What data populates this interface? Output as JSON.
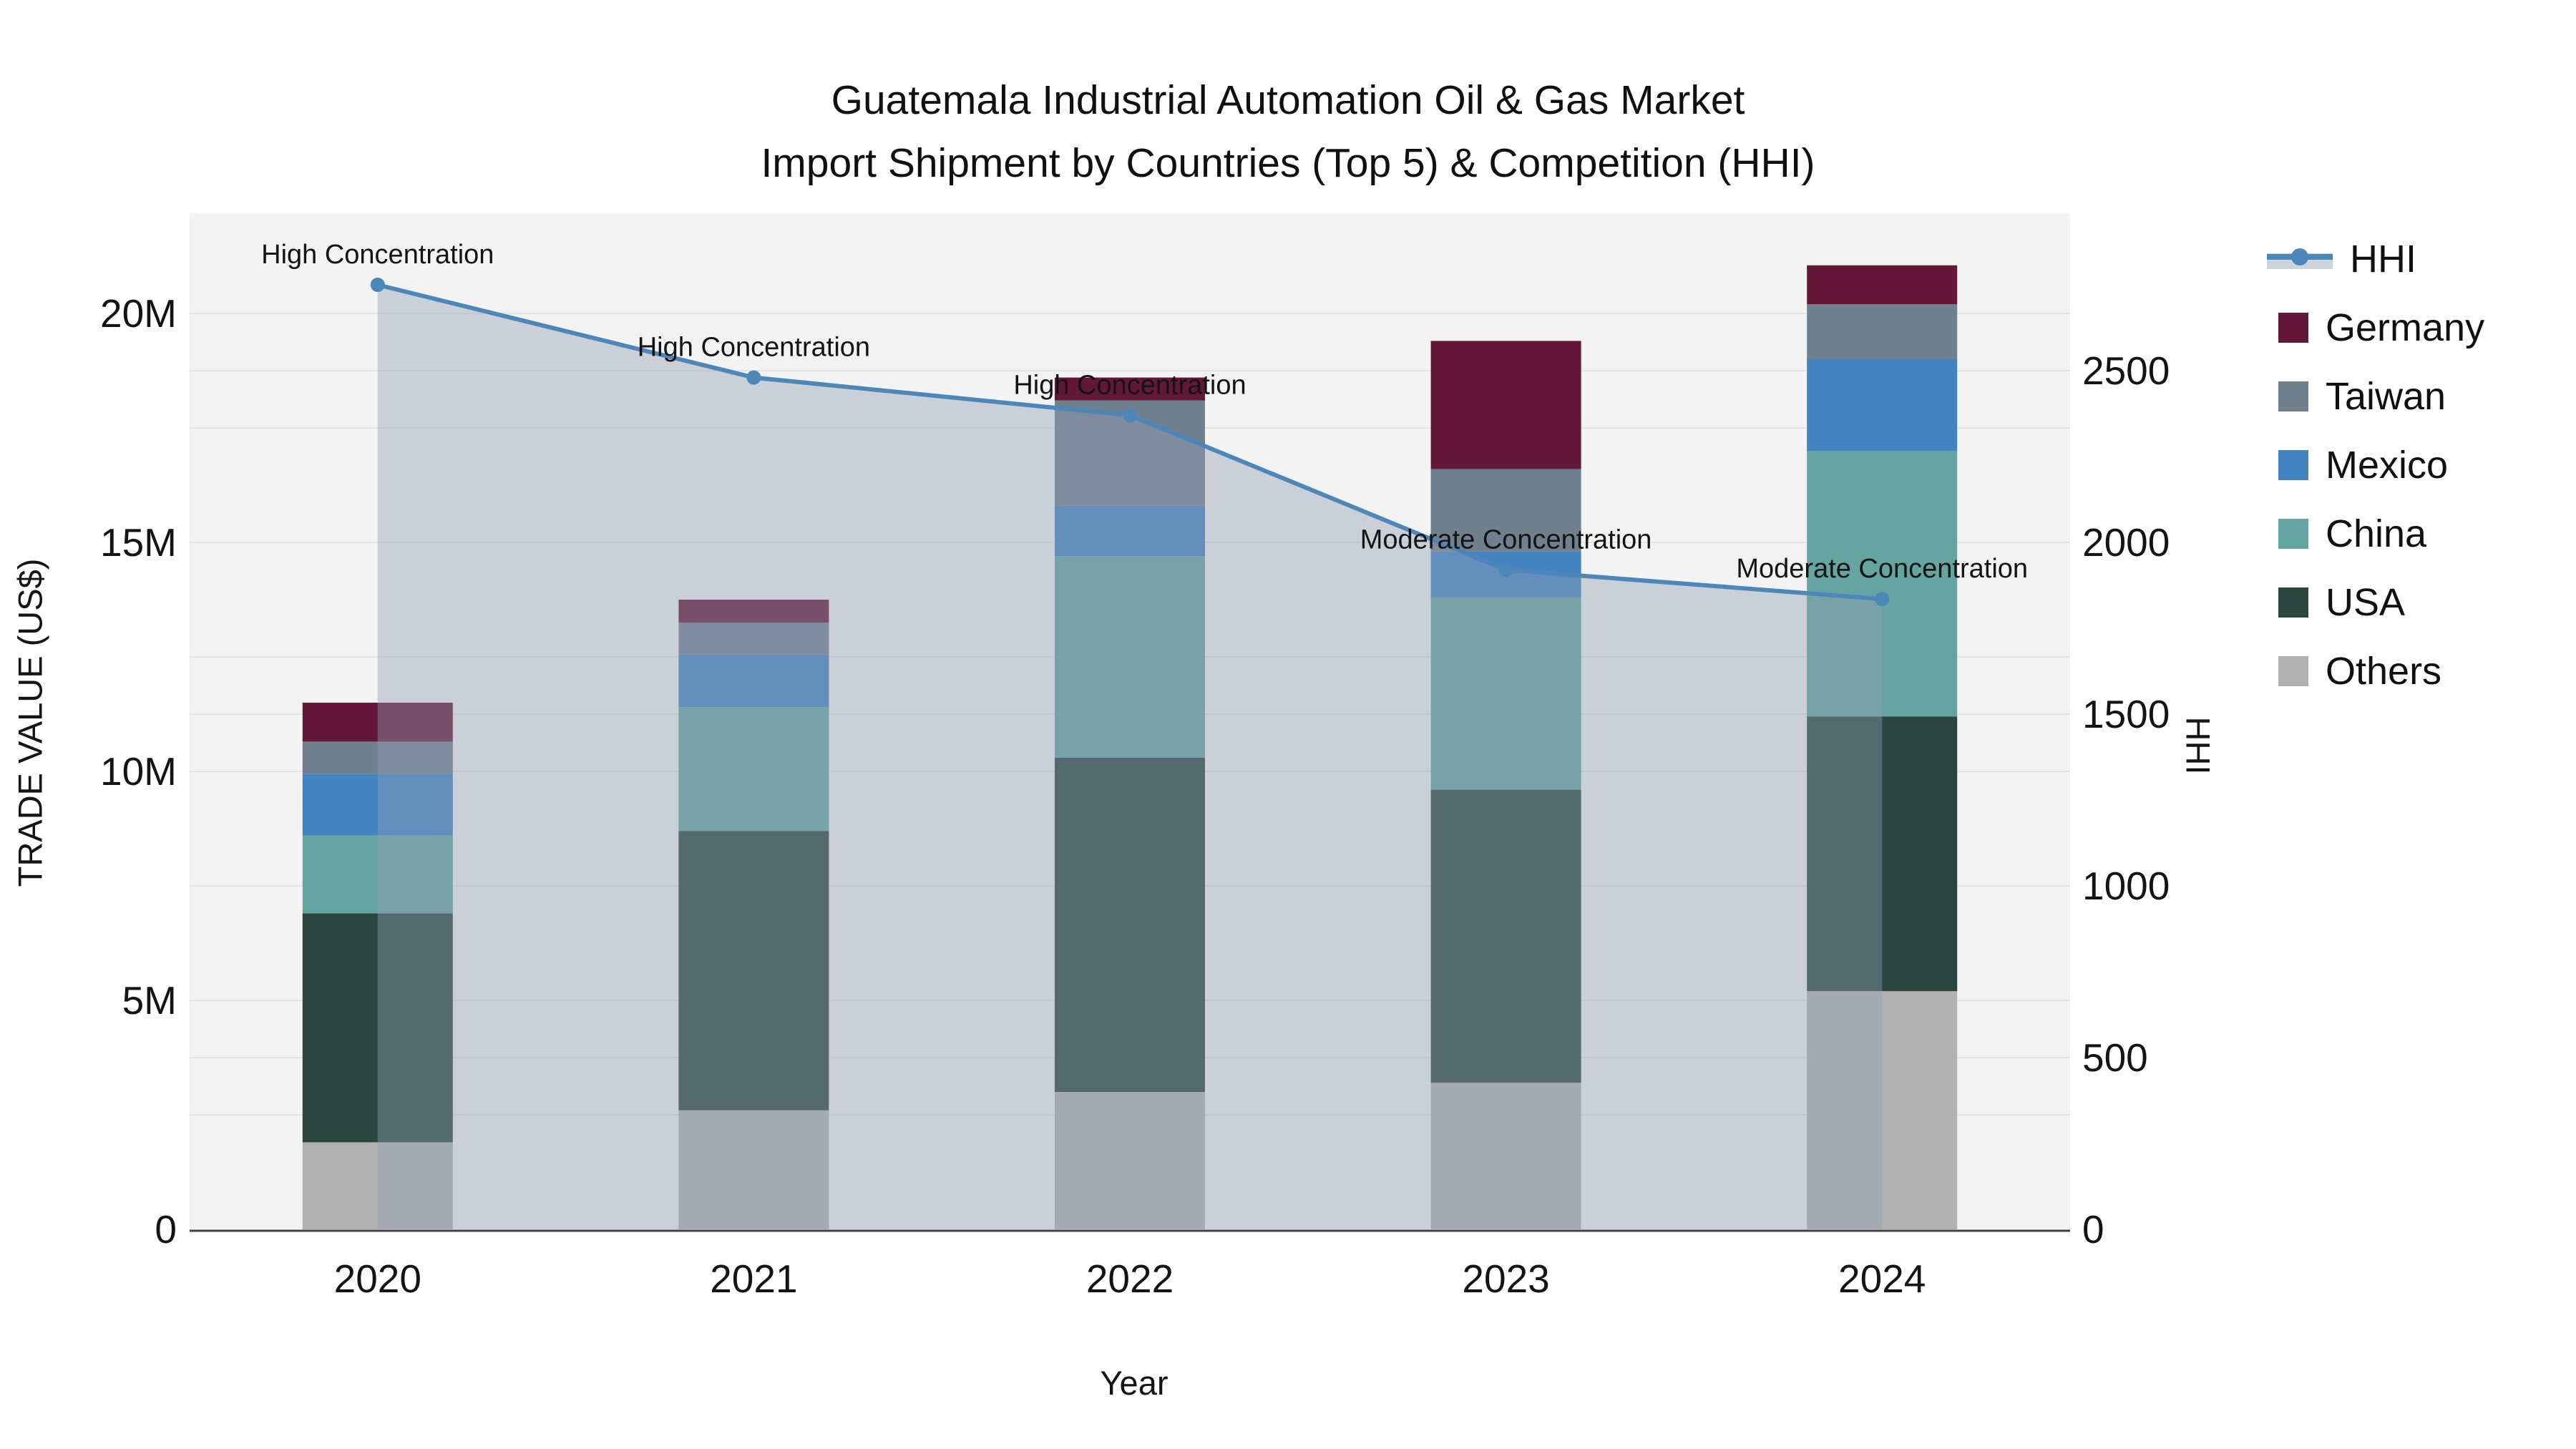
{
  "title": {
    "line1": "Guatemala Industrial Automation Oil & Gas Market",
    "line2": "Import Shipment by Countries (Top 5) & Competition (HHI)"
  },
  "axes": {
    "x": {
      "title": "Year",
      "tick_labels": [
        "2020",
        "2021",
        "2022",
        "2023",
        "2024"
      ]
    },
    "y_left": {
      "title": "TRADE VALUE (US$)",
      "tick_labels": [
        "0",
        "5M",
        "10M",
        "15M",
        "20M"
      ],
      "tick_values_millions": [
        0,
        5,
        10,
        15,
        20
      ],
      "grid_values_millions": [
        2.5,
        5,
        7.5,
        10,
        12.5,
        15,
        17.5,
        20
      ]
    },
    "y_right": {
      "title": "HHI",
      "tick_labels": [
        "0",
        "500",
        "1000",
        "1500",
        "2000",
        "2500"
      ],
      "tick_values": [
        0,
        500,
        1000,
        1500,
        2000,
        2500
      ]
    }
  },
  "legend": {
    "items": [
      {
        "label": "HHI",
        "swatch": "line",
        "color": "#4d87b9"
      },
      {
        "label": "Germany",
        "swatch": "square",
        "color": "#641838"
      },
      {
        "label": "Taiwan",
        "swatch": "square",
        "color": "#71808f"
      },
      {
        "label": "Mexico",
        "swatch": "square",
        "color": "#4483c1"
      },
      {
        "label": "China",
        "swatch": "square",
        "color": "#64a5a1"
      },
      {
        "label": "USA",
        "swatch": "square",
        "color": "#2a463f"
      },
      {
        "label": "Others",
        "swatch": "square",
        "color": "#b2b1b1"
      }
    ]
  },
  "chart_data": {
    "type": "bar+line",
    "title": "Guatemala Industrial Automation Oil & Gas Market — Import Shipment by Countries (Top 5) & Competition (HHI)",
    "xlabel": "Year",
    "ylabel_left": "TRADE VALUE (US$)",
    "ylabel_right": "HHI",
    "categories": [
      "2020",
      "2021",
      "2022",
      "2023",
      "2024"
    ],
    "stacked_bar_series_bottom_to_top": [
      {
        "name": "Others",
        "color": "#b2b1b1",
        "values_millions": [
          1.9,
          2.6,
          3.0,
          3.2,
          5.2
        ]
      },
      {
        "name": "USA",
        "color": "#2a463f",
        "values_millions": [
          5.0,
          6.1,
          7.3,
          6.4,
          6.0
        ]
      },
      {
        "name": "China",
        "color": "#64a5a1",
        "values_millions": [
          1.7,
          2.7,
          4.4,
          4.2,
          5.8
        ]
      },
      {
        "name": "Mexico",
        "color": "#4483c1",
        "values_millions": [
          1.35,
          1.15,
          1.1,
          1.0,
          2.0
        ]
      },
      {
        "name": "Taiwan",
        "color": "#71808f",
        "values_millions": [
          0.7,
          0.7,
          2.3,
          1.8,
          1.2
        ]
      },
      {
        "name": "Germany",
        "color": "#641838",
        "values_millions": [
          0.85,
          0.5,
          0.5,
          2.8,
          0.85
        ]
      }
    ],
    "bar_totals_millions": [
      11.5,
      13.75,
      18.6,
      19.4,
      21.05
    ],
    "line_series": {
      "name": "HHI",
      "axis": "right",
      "color": "#4d87b9",
      "fill_color": "rgba(146,158,178,0.42)",
      "values": [
        2750,
        2480,
        2370,
        1920,
        1835
      ]
    },
    "annotations": [
      {
        "category": "2020",
        "text": "High Concentration"
      },
      {
        "category": "2021",
        "text": "High Concentration"
      },
      {
        "category": "2022",
        "text": "High Concentration"
      },
      {
        "category": "2023",
        "text": "Moderate Concentration"
      },
      {
        "category": "2024",
        "text": "Moderate Concentration"
      }
    ],
    "ylim_left_millions": [
      0,
      22.2
    ],
    "ylim_right": [
      0,
      2960
    ],
    "grid": true,
    "legend_position": "right",
    "bar_orientation": "vertical"
  },
  "style": {
    "plot_background": "#f3f3f3",
    "page_background": "#ffffff",
    "gridline_color": "#e4e4e4",
    "axis_spine_color": "#3f3f3f",
    "text_color": "#141414",
    "annotation_color": "#0d0d0d",
    "legend_band_color": "#cdd3dc"
  }
}
